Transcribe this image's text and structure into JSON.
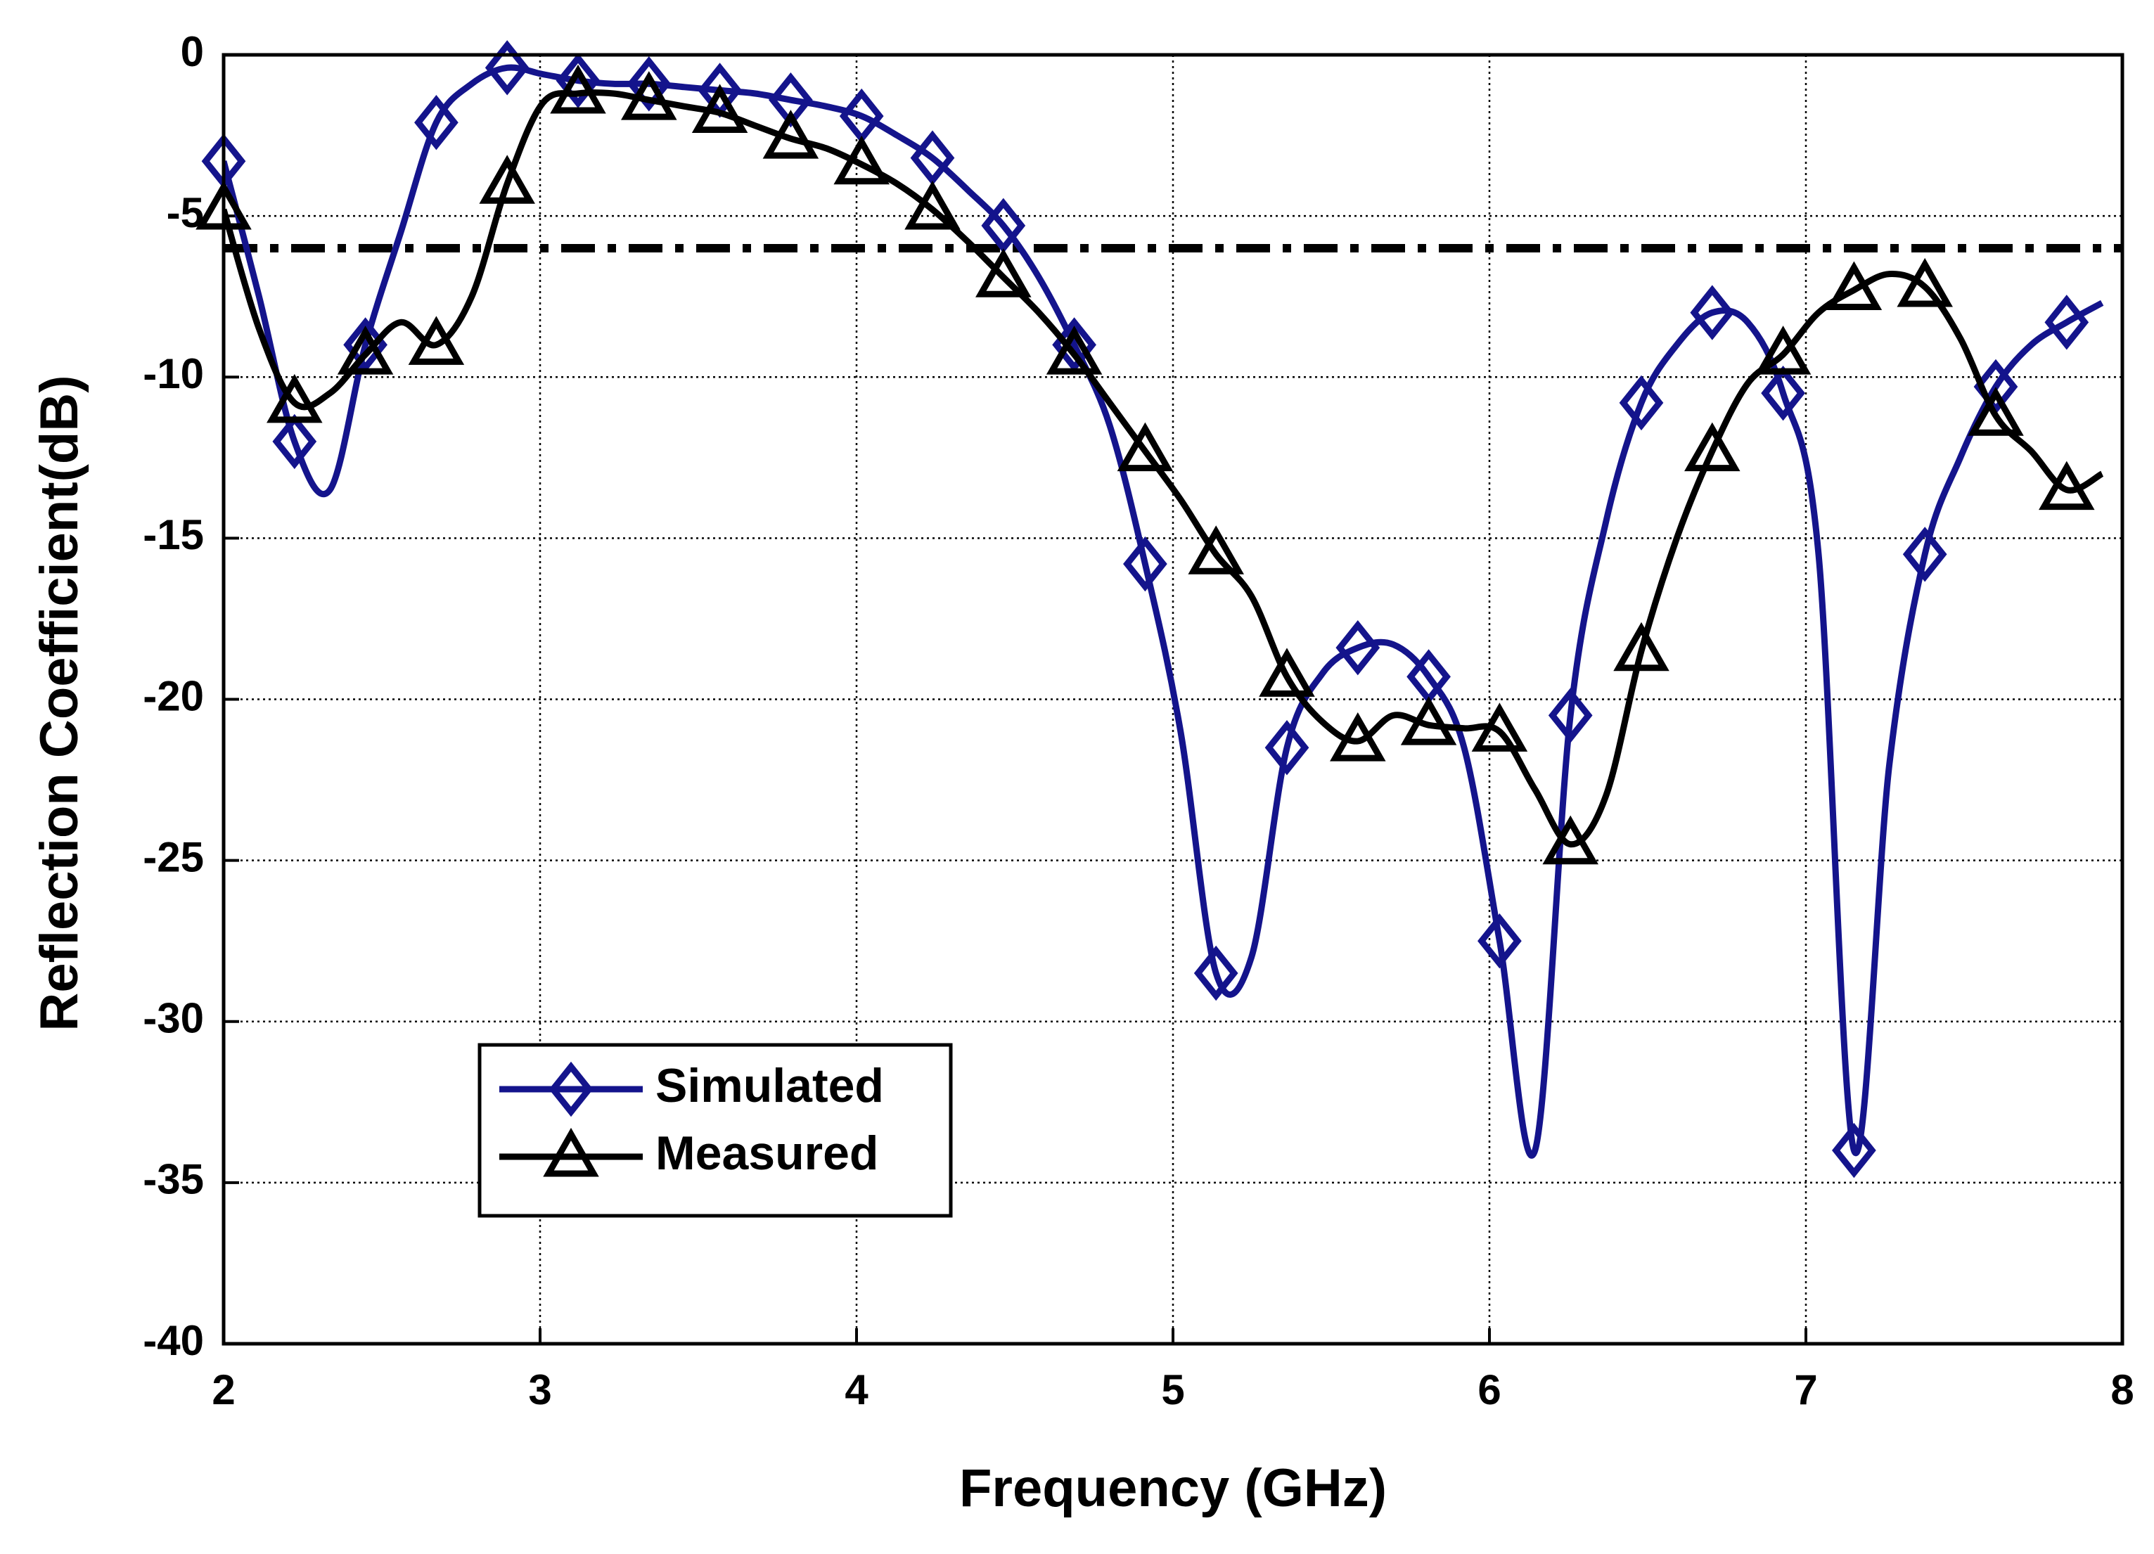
{
  "chart_data": {
    "type": "line",
    "x_label": "Frequency (GHz)",
    "y_label": "Reflection Coefficient(dB)",
    "x": [
      2.0,
      2.112,
      2.224,
      2.336,
      2.448,
      2.56,
      2.672,
      2.784,
      2.896,
      3.008,
      3.12,
      3.232,
      3.344,
      3.456,
      3.568,
      3.68,
      3.792,
      3.904,
      4.016,
      4.128,
      4.24,
      4.352,
      4.464,
      4.576,
      4.688,
      4.8,
      4.912,
      5.024,
      5.136,
      5.248,
      5.36,
      5.472,
      5.584,
      5.696,
      5.808,
      5.92,
      6.032,
      6.144,
      6.256,
      6.368,
      6.48,
      6.592,
      6.704,
      6.816,
      6.928,
      7.04,
      7.152,
      7.264,
      7.376,
      7.488,
      7.6,
      7.712,
      7.824,
      7.936
    ],
    "series": [
      {
        "name": "Simulated",
        "color": "#14148c",
        "marker": "diamond",
        "values": [
          -3.3,
          -7.5,
          -12.0,
          -13.5,
          -9.0,
          -5.5,
          -2.1,
          -0.9,
          -0.4,
          -0.6,
          -0.8,
          -0.9,
          -0.9,
          -1.0,
          -1.1,
          -1.2,
          -1.4,
          -1.6,
          -1.9,
          -2.5,
          -3.2,
          -4.2,
          -5.3,
          -6.9,
          -9.0,
          -11.5,
          -15.8,
          -21,
          -28.5,
          -28,
          -21.5,
          -19.2,
          -18.4,
          -18.3,
          -19.3,
          -21.5,
          -27.5,
          -34,
          -20.5,
          -14.5,
          -10.8,
          -9.0,
          -8.0,
          -8.3,
          -10.5,
          -15.5,
          -34,
          -22,
          -15.5,
          -12.5,
          -10.3,
          -9.0,
          -8.3,
          -7.7
        ]
      },
      {
        "name": "Measured",
        "color": "#000000",
        "marker": "triangle",
        "values": [
          -4.8,
          -8.5,
          -10.8,
          -10.5,
          -9.3,
          -8.3,
          -9.0,
          -7.5,
          -4.0,
          -1.5,
          -1.2,
          -1.2,
          -1.4,
          -1.6,
          -1.8,
          -2.2,
          -2.6,
          -2.9,
          -3.4,
          -4.0,
          -4.8,
          -5.8,
          -6.9,
          -8.0,
          -9.3,
          -10.8,
          -12.3,
          -13.8,
          -15.5,
          -16.8,
          -19.3,
          -20.7,
          -21.3,
          -20.5,
          -20.8,
          -20.9,
          -21.0,
          -22.8,
          -24.5,
          -23.0,
          -18.5,
          -15.0,
          -12.3,
          -10.2,
          -9.3,
          -8.0,
          -7.3,
          -6.8,
          -7.2,
          -8.8,
          -11.2,
          -12.3,
          -13.5,
          -13.0
        ]
      }
    ],
    "reference_line": -6,
    "xlim": [
      2,
      8
    ],
    "xticks": [
      2,
      3,
      4,
      5,
      6,
      7,
      8
    ],
    "ylim": [
      -40,
      0
    ],
    "yticks": [
      -40,
      -35,
      -30,
      -25,
      -20,
      -15,
      -10,
      -5,
      0
    ],
    "grid": true,
    "legend": "lower left"
  }
}
